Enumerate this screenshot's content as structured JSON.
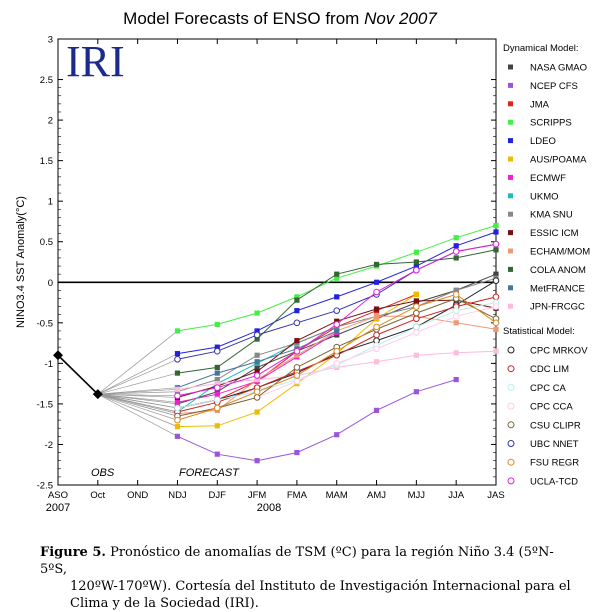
{
  "chart_data": {
    "type": "line",
    "title_prefix": "Model Forecasts of ENSO from ",
    "title_date": "Nov 2007",
    "logo_text": "IRI",
    "ylabel": "NINO3.4 SST Anomaly(°C)",
    "ylim": [
      -2.5,
      3
    ],
    "yticks": [
      "-2.5",
      "-2",
      "-1.5",
      "-1",
      "-0.5",
      "0",
      "0.5",
      "1",
      "1.5",
      "2",
      "2.5",
      "3"
    ],
    "xticks": [
      "ASO",
      "Oct",
      "OND",
      "NDJ",
      "DJF",
      "JFM",
      "FMA",
      "MAM",
      "AMJ",
      "MJJ",
      "JJA",
      "JAS"
    ],
    "year_labels": [
      {
        "label": "2007",
        "x": 0
      },
      {
        "label": "2008",
        "x": 5.3
      }
    ],
    "obs_label": "OBS",
    "forecast_label": "FORECAST",
    "observed": [
      {
        "x": 0,
        "y": -0.9
      },
      {
        "x": 1,
        "y": -1.38
      }
    ],
    "dynamical_header": "Dynamical Model:",
    "statistical_header": "Statistical Model:",
    "series": [
      {
        "name": "NASA GMAO",
        "group": "dynamical",
        "color": "#444444",
        "values": [
          -1.5,
          -1.35,
          -1.05,
          -0.85,
          -0.65,
          -0.45,
          -0.25,
          -0.1,
          0.1
        ]
      },
      {
        "name": "NCEP CFS",
        "group": "dynamical",
        "color": "#9955dd",
        "values": [
          -1.9,
          -2.12,
          -2.2,
          -2.1,
          -1.88,
          -1.58,
          -1.35,
          -1.2,
          null
        ]
      },
      {
        "name": "JMA",
        "group": "dynamical",
        "color": "#dd2222",
        "values": [
          -1.55,
          -1.45,
          -1.22,
          -0.85,
          -0.55,
          -0.35,
          -0.15,
          null,
          null
        ]
      },
      {
        "name": "SCRIPPS",
        "group": "dynamical",
        "color": "#44ee44",
        "values": [
          -0.6,
          -0.52,
          -0.38,
          -0.18,
          0.05,
          0.2,
          0.37,
          0.55,
          0.7
        ]
      },
      {
        "name": "LDEO",
        "group": "dynamical",
        "color": "#2222dd",
        "values": [
          -0.88,
          -0.8,
          -0.6,
          -0.35,
          -0.18,
          0.0,
          0.2,
          0.45,
          0.62
        ]
      },
      {
        "name": "AUS/POAMA",
        "group": "dynamical",
        "color": "#eebb00",
        "values": [
          -1.78,
          -1.77,
          -1.6,
          -1.25,
          -0.88,
          -0.45,
          -0.15,
          null,
          null
        ]
      },
      {
        "name": "ECMWF",
        "group": "dynamical",
        "color": "#ee22cc",
        "values": [
          -1.48,
          -1.38,
          -1.22,
          -0.92,
          -0.62,
          null,
          null,
          null,
          null
        ]
      },
      {
        "name": "UKMO",
        "group": "dynamical",
        "color": "#22bbbb",
        "values": [
          -1.6,
          -1.25,
          -1.0,
          -0.75,
          -0.55,
          null,
          null,
          null,
          null
        ]
      },
      {
        "name": "KMA SNU",
        "group": "dynamical",
        "color": "#888888",
        "values": [
          -1.35,
          -1.2,
          -0.9,
          -0.75,
          -0.55,
          -0.42,
          -0.3,
          -0.1,
          0.05
        ]
      },
      {
        "name": "ESSIC ICM",
        "group": "dynamical",
        "color": "#771111",
        "values": [
          -1.42,
          -1.28,
          -1.1,
          -0.72,
          -0.48,
          -0.33,
          -0.23,
          -0.22,
          -0.32
        ]
      },
      {
        "name": "ECHAM/MOM",
        "group": "dynamical",
        "color": "#ee9977",
        "values": [
          -1.62,
          -1.58,
          -1.2,
          -0.9,
          -0.6,
          -0.42,
          -0.42,
          -0.5,
          -0.58
        ]
      },
      {
        "name": "COLA ANOM",
        "group": "dynamical",
        "color": "#336633",
        "values": [
          -1.12,
          -1.05,
          -0.7,
          -0.22,
          0.1,
          0.22,
          0.25,
          0.3,
          0.4
        ]
      },
      {
        "name": "MetFRANCE",
        "group": "dynamical",
        "color": "#447799",
        "values": [
          -1.3,
          -1.12,
          -0.98,
          -0.82,
          -0.6,
          null,
          null,
          null,
          null
        ]
      },
      {
        "name": "JPN-FRCGC",
        "group": "dynamical",
        "color": "#ffbbdd",
        "values": [
          -1.32,
          -1.25,
          -1.2,
          -1.15,
          -1.05,
          -0.98,
          -0.9,
          -0.87,
          -0.85
        ]
      },
      {
        "name": "CPC MRKOV",
        "group": "statistical",
        "color": "#222222",
        "values": [
          -1.55,
          -1.45,
          -1.3,
          -1.12,
          -0.88,
          -0.72,
          -0.55,
          -0.28,
          0.02
        ]
      },
      {
        "name": "CDC LIM",
        "group": "statistical",
        "color": "#cc2222",
        "values": [
          -1.6,
          -1.48,
          -1.3,
          -1.1,
          -0.9,
          -0.65,
          -0.45,
          -0.3,
          -0.18
        ]
      },
      {
        "name": "CPC CA",
        "group": "statistical",
        "color": "#bbeeee",
        "values": [
          -1.55,
          -1.45,
          -1.35,
          -1.2,
          -1.02,
          -0.78,
          -0.55,
          -0.35,
          -0.25
        ]
      },
      {
        "name": "CPC CCA",
        "group": "statistical",
        "color": "#ffccee",
        "values": [
          -1.65,
          -1.55,
          -1.42,
          -1.22,
          -1.0,
          -0.82,
          -0.62,
          -0.42,
          -0.3
        ]
      },
      {
        "name": "CSU CLIPR",
        "group": "statistical",
        "color": "#776633",
        "values": [
          -1.65,
          -1.55,
          -1.42,
          -1.05,
          -0.8,
          -0.58,
          -0.38,
          -0.2,
          -0.45
        ]
      },
      {
        "name": "UBC NNET",
        "group": "statistical",
        "color": "#3333aa",
        "values": [
          -0.95,
          -0.85,
          -0.65,
          -0.5,
          -0.35,
          -0.15,
          0.15,
          0.38,
          0.47
        ]
      },
      {
        "name": "FSU REGR",
        "group": "statistical",
        "color": "#dd8822",
        "values": [
          -1.7,
          -1.55,
          -1.35,
          -1.15,
          -0.85,
          -0.55,
          -0.3,
          -0.15,
          -0.5
        ]
      },
      {
        "name": "UCLA-TCD",
        "group": "statistical",
        "color": "#dd22dd",
        "values": [
          -1.4,
          -1.3,
          -1.15,
          -0.85,
          -0.52,
          -0.12,
          0.15,
          0.38,
          0.47
        ]
      }
    ]
  },
  "caption": {
    "label": "Figure 5.",
    "text_line1": " Pronóstico de anomalías de TSM (ºC) para la región Niño 3.4 (5ºN-5ºS,",
    "text_line2": "120ºW-170ºW). Cortesía del Instituto de Investigación Internacional para el",
    "text_line3": "Clima y de la Sociedad (IRI)."
  }
}
